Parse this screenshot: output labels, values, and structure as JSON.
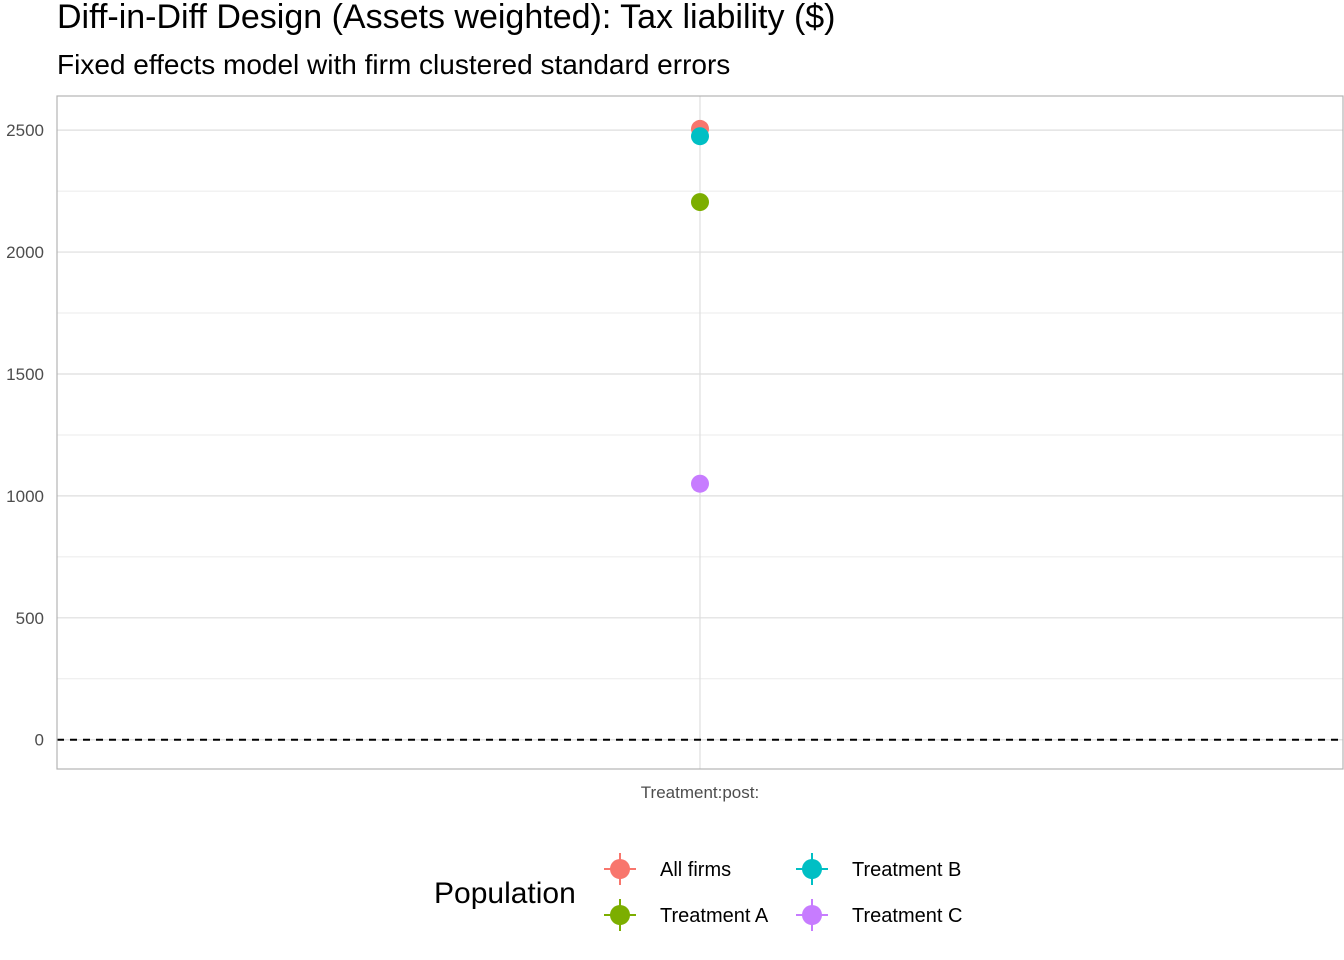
{
  "chart_data": {
    "type": "scatter",
    "title": "Diff-in-Diff Design (Assets weighted): Tax liability  ($)",
    "subtitle": "Fixed effects model with firm clustered standard errors",
    "xlabel": "",
    "ylabel": "",
    "categories": [
      "Treatment:post:"
    ],
    "ylim": [
      -120,
      2640
    ],
    "yticks": [
      0,
      500,
      1000,
      1500,
      2000,
      2500
    ],
    "ytick_labels": [
      "0",
      "500",
      "1000",
      "1500",
      "2000",
      "2500"
    ],
    "grid": true,
    "reference_line": {
      "y": 0,
      "style": "dashed"
    },
    "legend": {
      "title": "Population",
      "position": "bottom"
    },
    "series": [
      {
        "name": "All firms",
        "color": "#F8766D",
        "values": [
          2505
        ]
      },
      {
        "name": "Treatment A",
        "color": "#7CAE00",
        "values": [
          2205
        ]
      },
      {
        "name": "Treatment B",
        "color": "#00BFC4",
        "values": [
          2475
        ]
      },
      {
        "name": "Treatment C",
        "color": "#C77CFF",
        "values": [
          1050
        ]
      }
    ]
  }
}
